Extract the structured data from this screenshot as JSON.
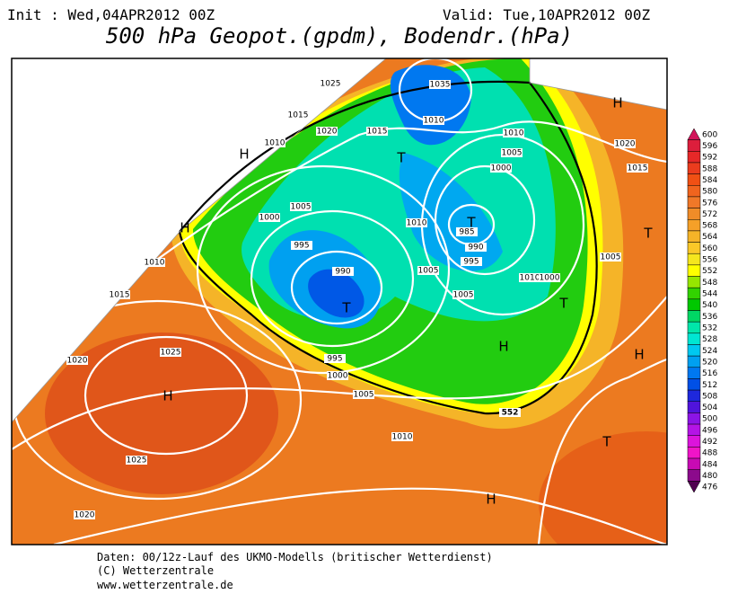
{
  "header": {
    "init": "Init : Wed,04APR2012 00Z",
    "valid": "Valid: Tue,10APR2012 00Z",
    "title": "500 hPa Geopot.(gpdm), Bodendr.(hPa)"
  },
  "map": {
    "isobar_labels": [
      "1025",
      "1035",
      "1015",
      "1010",
      "1020",
      "1015",
      "1010",
      "1010",
      "1000",
      "1005",
      "1005",
      "1000",
      "1010",
      "995",
      "985",
      "990",
      "995",
      "1010",
      "1000",
      "990",
      "1005",
      "1005",
      "1005",
      "995",
      "1000",
      "1005",
      "1010",
      "1015",
      "1020",
      "1025",
      "1025",
      "1020",
      "1010",
      "1020",
      "1015"
    ],
    "pressure_centers": [
      "H",
      "H",
      "H",
      "T",
      "T",
      "T",
      "T",
      "H",
      "H",
      "H",
      "T",
      "H",
      "T"
    ],
    "contour_label": "552"
  },
  "legend": {
    "levels": [
      600,
      596,
      592,
      588,
      584,
      580,
      576,
      572,
      568,
      564,
      560,
      556,
      552,
      548,
      544,
      540,
      536,
      532,
      528,
      524,
      520,
      516,
      512,
      508,
      504,
      500,
      496,
      492,
      488,
      484,
      480,
      476
    ],
    "colors": [
      "#d2145a",
      "#dc1e3c",
      "#e62828",
      "#eb3c1e",
      "#f05014",
      "#f0641e",
      "#f07828",
      "#f08c28",
      "#f5a028",
      "#f5b428",
      "#fac828",
      "#f5e61e",
      "#ffff00",
      "#96e600",
      "#32d200",
      "#00c800",
      "#00d764",
      "#00e6aa",
      "#00e6d2",
      "#00c8f0",
      "#00a0f0",
      "#0078f0",
      "#0050e6",
      "#1e28dc",
      "#5014dc",
      "#8c14e6",
      "#b414e6",
      "#dc14dc",
      "#f014c8",
      "#c80ab4",
      "#8c0a8c",
      "#500050"
    ]
  },
  "footer": {
    "lines": [
      "Daten: 00/12z-Lauf des UKMO-Modells (britischer Wetterdienst)",
      "(C) Wetterzentrale",
      "www.wetterzentrale.de"
    ]
  }
}
